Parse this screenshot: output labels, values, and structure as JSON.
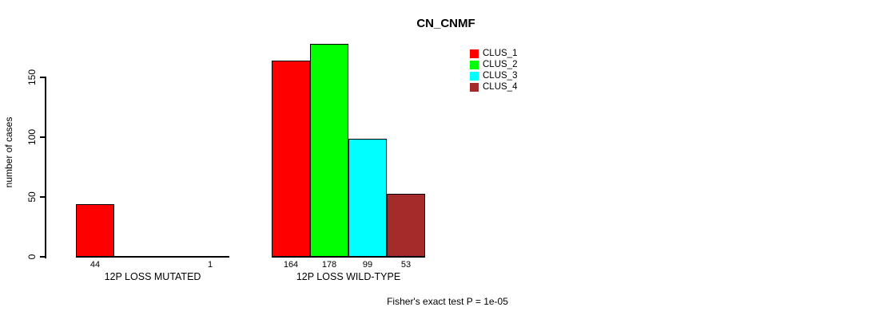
{
  "chart_data": {
    "type": "bar",
    "title": "CN_CNMF",
    "ylabel": "number of cases",
    "xlabel": "",
    "footer": "Fisher's exact test P = 1e-05",
    "series": [
      "CLUS_1",
      "CLUS_2",
      "CLUS_3",
      "CLUS_4"
    ],
    "colors": [
      "#ff0000",
      "#00ff00",
      "#00ffff",
      "#a52a2a"
    ],
    "groups": [
      {
        "label": "12P LOSS MUTATED",
        "values": [
          44,
          0,
          0,
          1
        ]
      },
      {
        "label": "12P LOSS WILD-TYPE",
        "values": [
          164,
          178,
          99,
          53
        ]
      }
    ],
    "yticks": [
      0,
      50,
      100,
      150
    ],
    "ylim": [
      0,
      180
    ],
    "grid": false,
    "legend_position": "top-right-inside",
    "bar_border_color": "#000000",
    "axis_color": "#000000",
    "background_color": "#ffffff",
    "value_labels_shown_for_nonzero_bars": true
  }
}
